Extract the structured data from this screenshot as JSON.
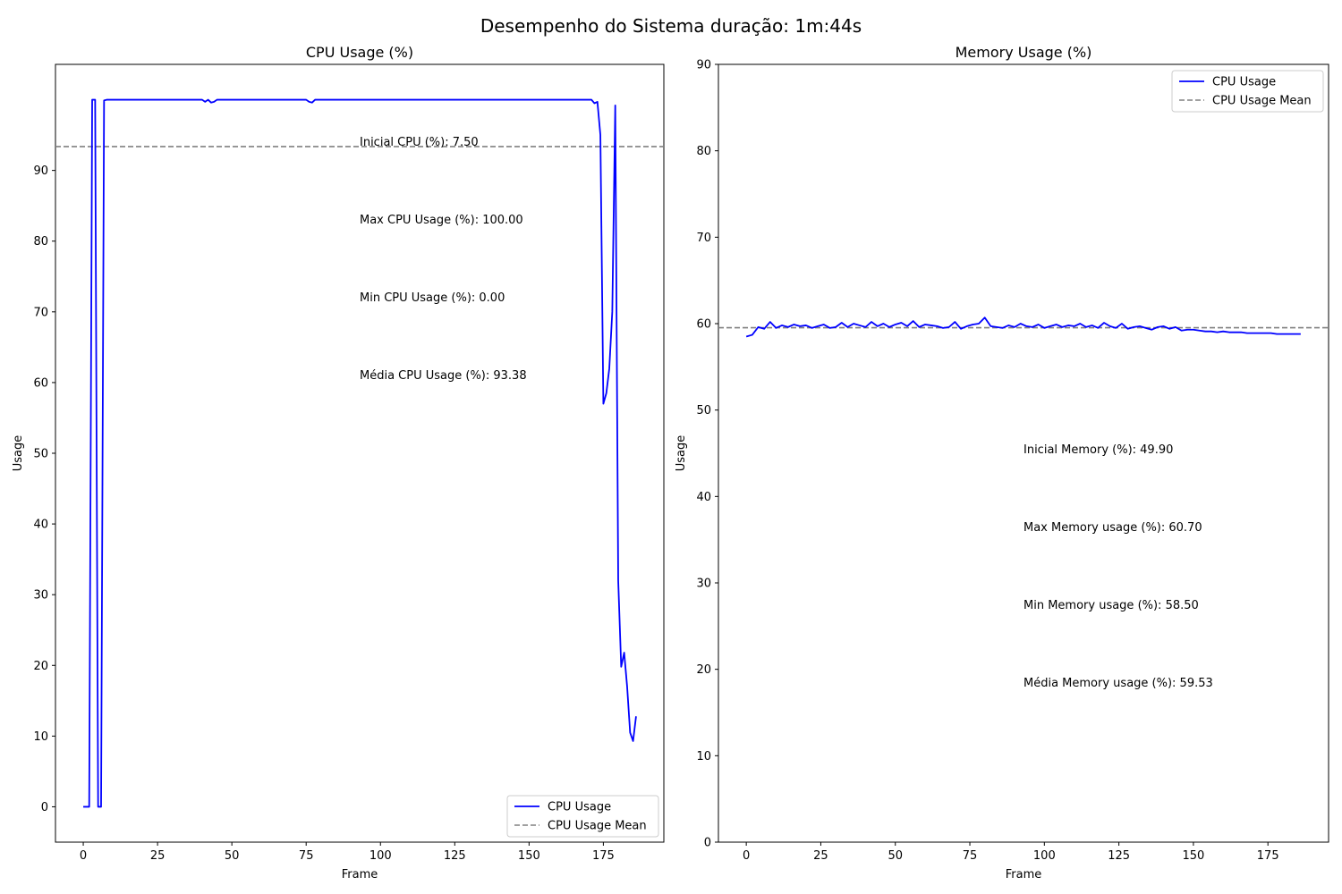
{
  "figure": {
    "suptitle": "Desempenho do Sistema duração: 1m:44s"
  },
  "chart_data": [
    {
      "type": "line",
      "title": "CPU Usage (%)",
      "xlabel": "Frame",
      "ylabel": "Usage",
      "xlim": [
        -9.35,
        195.35
      ],
      "ylim": [
        -5,
        105
      ],
      "xticks": [
        0,
        25,
        50,
        75,
        100,
        125,
        150,
        175
      ],
      "yticks": [
        0,
        10,
        20,
        30,
        40,
        50,
        60,
        70,
        80,
        90
      ],
      "legend": {
        "placement": "lower-right",
        "entries": [
          "CPU Usage",
          "CPU Usage Mean"
        ]
      },
      "colors": {
        "series": "#0000ff",
        "mean": "#808080"
      },
      "mean_line": 93.38,
      "series": [
        {
          "name": "CPU Usage",
          "x": [
            0,
            1,
            2,
            3,
            4,
            5,
            6,
            7,
            8,
            9,
            10,
            40,
            41,
            42,
            43,
            44,
            45,
            75,
            76,
            77,
            78,
            79,
            170,
            171,
            172,
            173,
            174,
            175,
            176,
            177,
            178,
            179,
            180,
            181,
            182,
            183,
            184,
            185,
            186
          ],
          "y": [
            0,
            0,
            0,
            100,
            100,
            0,
            0,
            99.9,
            100,
            100,
            100,
            100,
            99.7,
            100,
            99.6,
            99.7,
            100,
            100,
            99.7,
            99.6,
            100,
            100,
            100,
            100,
            99.5,
            99.7,
            95,
            57,
            58.5,
            62,
            70,
            99.2,
            32,
            19.8,
            21.8,
            17,
            10.5,
            9.3,
            12.8
          ]
        }
      ],
      "annotations": [
        {
          "text": "Inicial CPU (%): 7.50",
          "x": 93,
          "y": 93.5
        },
        {
          "text": "Max CPU Usage (%): 100.00",
          "x": 93,
          "y": 82.5
        },
        {
          "text": "Min CPU Usage (%): 0.00",
          "x": 93,
          "y": 71.5
        },
        {
          "text": "Média CPU Usage (%): 93.38",
          "x": 93,
          "y": 60.5
        }
      ]
    },
    {
      "type": "line",
      "title": "Memory Usage (%)",
      "xlabel": "Frame",
      "ylabel": "Usage",
      "xlim": [
        -9.35,
        195.35
      ],
      "ylim": [
        0,
        90
      ],
      "xticks": [
        0,
        25,
        50,
        75,
        100,
        125,
        150,
        175
      ],
      "yticks": [
        0,
        10,
        20,
        30,
        40,
        50,
        60,
        70,
        80,
        90
      ],
      "legend": {
        "placement": "upper-right",
        "entries": [
          "CPU Usage",
          "CPU Usage Mean"
        ]
      },
      "colors": {
        "series": "#0000ff",
        "mean": "#808080"
      },
      "mean_line": 59.53,
      "series": [
        {
          "name": "CPU Usage",
          "x": [
            0,
            2,
            4,
            6,
            8,
            10,
            12,
            14,
            16,
            18,
            20,
            22,
            24,
            26,
            28,
            30,
            32,
            34,
            36,
            38,
            40,
            42,
            44,
            46,
            48,
            50,
            52,
            54,
            56,
            58,
            60,
            62,
            64,
            66,
            68,
            70,
            72,
            74,
            76,
            78,
            80,
            82,
            84,
            86,
            88,
            90,
            92,
            94,
            96,
            98,
            100,
            102,
            104,
            106,
            108,
            110,
            112,
            114,
            116,
            118,
            120,
            122,
            124,
            126,
            128,
            130,
            132,
            134,
            136,
            138,
            140,
            142,
            144,
            146,
            148,
            150,
            152,
            154,
            156,
            158,
            160,
            162,
            164,
            166,
            168,
            170,
            172,
            174,
            176,
            178,
            180,
            182,
            184,
            186
          ],
          "y": [
            58.5,
            58.7,
            59.6,
            59.4,
            60.2,
            59.5,
            59.8,
            59.6,
            59.9,
            59.7,
            59.8,
            59.5,
            59.7,
            59.9,
            59.5,
            59.6,
            60.1,
            59.6,
            60.0,
            59.8,
            59.6,
            60.2,
            59.7,
            60.0,
            59.6,
            59.9,
            60.1,
            59.7,
            60.3,
            59.6,
            59.9,
            59.8,
            59.7,
            59.5,
            59.6,
            60.2,
            59.4,
            59.7,
            59.9,
            60.0,
            60.7,
            59.7,
            59.6,
            59.5,
            59.8,
            59.6,
            60.0,
            59.7,
            59.6,
            59.9,
            59.5,
            59.7,
            59.9,
            59.6,
            59.8,
            59.7,
            60.0,
            59.6,
            59.8,
            59.5,
            60.1,
            59.7,
            59.5,
            60.0,
            59.4,
            59.6,
            59.7,
            59.5,
            59.3,
            59.6,
            59.7,
            59.4,
            59.6,
            59.2,
            59.3,
            59.3,
            59.2,
            59.1,
            59.1,
            59.0,
            59.1,
            59.0,
            59.0,
            59.0,
            58.9,
            58.9,
            58.9,
            58.9,
            58.9,
            58.8,
            58.8,
            58.8,
            58.8,
            58.8
          ]
        }
      ],
      "annotations": [
        {
          "text": "Inicial Memory (%): 49.90",
          "x": 93,
          "y": 45
        },
        {
          "text": "Max Memory usage (%): 60.70",
          "x": 93,
          "y": 36
        },
        {
          "text": "Min Memory usage (%): 58.50",
          "x": 93,
          "y": 27
        },
        {
          "text": "Média Memory usage (%): 59.53",
          "x": 93,
          "y": 18
        }
      ]
    }
  ]
}
